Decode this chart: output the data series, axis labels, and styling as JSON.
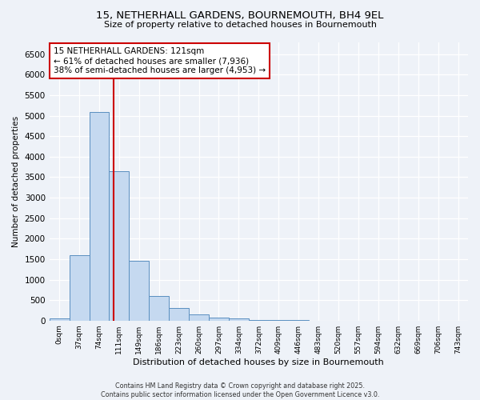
{
  "title_line1": "15, NETHERHALL GARDENS, BOURNEMOUTH, BH4 9EL",
  "title_line2": "Size of property relative to detached houses in Bournemouth",
  "xlabel": "Distribution of detached houses by size in Bournemouth",
  "ylabel": "Number of detached properties",
  "bin_labels": [
    "0sqm",
    "37sqm",
    "74sqm",
    "111sqm",
    "149sqm",
    "186sqm",
    "223sqm",
    "260sqm",
    "297sqm",
    "334sqm",
    "372sqm",
    "409sqm",
    "446sqm",
    "483sqm",
    "520sqm",
    "557sqm",
    "594sqm",
    "632sqm",
    "669sqm",
    "706sqm",
    "743sqm"
  ],
  "bar_values": [
    50,
    1600,
    5100,
    3650,
    1450,
    600,
    300,
    155,
    80,
    50,
    20,
    8,
    5,
    0,
    0,
    0,
    0,
    0,
    0,
    0,
    0
  ],
  "bar_color": "#c5d9f0",
  "bar_edge_color": "#5a8fc0",
  "vline_color": "#cc0000",
  "vline_pos": 2.73,
  "annotation_text": "15 NETHERHALL GARDENS: 121sqm\n← 61% of detached houses are smaller (7,936)\n38% of semi-detached houses are larger (4,953) →",
  "annotation_box_edge": "#cc0000",
  "ylim": [
    0,
    6800
  ],
  "yticks": [
    0,
    500,
    1000,
    1500,
    2000,
    2500,
    3000,
    3500,
    4000,
    4500,
    5000,
    5500,
    6000,
    6500
  ],
  "bg_color": "#eef2f8",
  "grid_color": "#ffffff",
  "footer_text": "Contains HM Land Registry data © Crown copyright and database right 2025.\nContains public sector information licensed under the Open Government Licence v3.0."
}
